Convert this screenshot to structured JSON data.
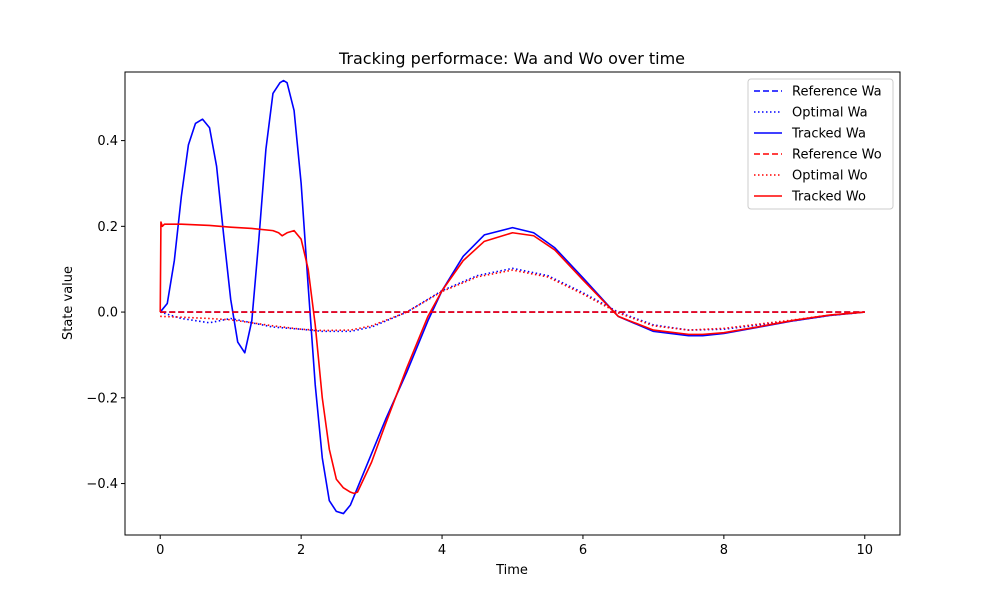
{
  "chart_data": {
    "type": "line",
    "title": "Tracking performace: Wa and Wo over time",
    "xlabel": "Time",
    "ylabel": "State value",
    "xlim": [
      -0.5,
      10.5
    ],
    "ylim": [
      -0.52,
      0.56
    ],
    "xticks": [
      0,
      2,
      4,
      6,
      8,
      10
    ],
    "xtick_labels": [
      "0",
      "2",
      "4",
      "6",
      "8",
      "10"
    ],
    "yticks": [
      -0.4,
      -0.2,
      0.0,
      0.2,
      0.4
    ],
    "ytick_labels": [
      "−0.4",
      "−0.2",
      "0.0",
      "0.2",
      "0.4"
    ],
    "grid": false,
    "legend_position": "top-right",
    "series": [
      {
        "name": "Reference Wa",
        "color": "#0000ff",
        "style": "dashed",
        "x": [
          0,
          10
        ],
        "y": [
          0,
          0
        ]
      },
      {
        "name": "Optimal Wa",
        "color": "#0000ff",
        "style": "dotted",
        "x": [
          0,
          0.3,
          0.7,
          1.0,
          1.3,
          1.6,
          2.0,
          2.3,
          2.7,
          3.0,
          3.5,
          4.0,
          4.5,
          5.0,
          5.5,
          6.0,
          6.5,
          7.0,
          7.5,
          8.0,
          8.5,
          9.0,
          9.5,
          10.0
        ],
        "y": [
          0,
          -0.015,
          -0.025,
          -0.015,
          -0.025,
          -0.035,
          -0.04,
          -0.045,
          -0.045,
          -0.035,
          0.0,
          0.05,
          0.085,
          0.102,
          0.085,
          0.045,
          0.0,
          -0.03,
          -0.042,
          -0.04,
          -0.03,
          -0.02,
          -0.008,
          0.0
        ]
      },
      {
        "name": "Tracked Wa",
        "color": "#0000ff",
        "style": "solid",
        "x": [
          0,
          0.1,
          0.2,
          0.3,
          0.4,
          0.5,
          0.6,
          0.7,
          0.8,
          0.9,
          1.0,
          1.1,
          1.2,
          1.3,
          1.4,
          1.5,
          1.6,
          1.7,
          1.75,
          1.8,
          1.9,
          2.0,
          2.1,
          2.2,
          2.3,
          2.4,
          2.5,
          2.6,
          2.7,
          2.8,
          3.0,
          3.2,
          3.5,
          3.8,
          4.0,
          4.3,
          4.6,
          5.0,
          5.3,
          5.6,
          6.0,
          6.5,
          7.0,
          7.5,
          7.7,
          8.0,
          8.5,
          9.0,
          9.5,
          10.0
        ],
        "y": [
          0,
          0.02,
          0.12,
          0.27,
          0.39,
          0.44,
          0.45,
          0.43,
          0.34,
          0.18,
          0.03,
          -0.07,
          -0.095,
          -0.02,
          0.17,
          0.38,
          0.51,
          0.535,
          0.54,
          0.535,
          0.47,
          0.3,
          0.06,
          -0.17,
          -0.34,
          -0.44,
          -0.465,
          -0.47,
          -0.45,
          -0.41,
          -0.33,
          -0.25,
          -0.14,
          -0.02,
          0.05,
          0.13,
          0.18,
          0.197,
          0.185,
          0.15,
          0.08,
          -0.01,
          -0.045,
          -0.055,
          -0.055,
          -0.05,
          -0.035,
          -0.02,
          -0.008,
          0.0
        ]
      },
      {
        "name": "Reference Wo",
        "color": "#ff0000",
        "style": "dashed",
        "x": [
          0,
          10
        ],
        "y": [
          0,
          0
        ]
      },
      {
        "name": "Optimal Wo",
        "color": "#ff0000",
        "style": "dotted",
        "x": [
          0,
          0.3,
          0.7,
          1.0,
          1.3,
          1.6,
          2.0,
          2.3,
          2.7,
          3.0,
          3.5,
          4.0,
          4.5,
          5.0,
          5.5,
          6.0,
          6.5,
          7.0,
          7.5,
          8.0,
          8.5,
          9.0,
          9.5,
          10.0
        ],
        "y": [
          -0.01,
          -0.012,
          -0.015,
          -0.018,
          -0.025,
          -0.032,
          -0.04,
          -0.043,
          -0.042,
          -0.032,
          0.0,
          0.048,
          0.082,
          0.098,
          0.082,
          0.042,
          -0.002,
          -0.032,
          -0.042,
          -0.038,
          -0.028,
          -0.018,
          -0.007,
          0.0
        ]
      },
      {
        "name": "Tracked Wo",
        "color": "#ff0000",
        "style": "solid",
        "x": [
          0,
          0.01,
          0.03,
          0.06,
          0.3,
          0.7,
          1.0,
          1.3,
          1.6,
          1.68,
          1.73,
          1.8,
          1.9,
          2.0,
          2.1,
          2.2,
          2.3,
          2.4,
          2.5,
          2.6,
          2.7,
          2.75,
          2.8,
          3.0,
          3.2,
          3.5,
          3.8,
          4.0,
          4.3,
          4.6,
          5.0,
          5.3,
          5.6,
          6.0,
          6.5,
          7.0,
          7.5,
          7.7,
          8.0,
          8.5,
          9.0,
          9.5,
          10.0
        ],
        "y": [
          0,
          0.21,
          0.2,
          0.205,
          0.205,
          0.202,
          0.198,
          0.195,
          0.19,
          0.185,
          0.178,
          0.185,
          0.19,
          0.17,
          0.1,
          -0.03,
          -0.2,
          -0.32,
          -0.39,
          -0.41,
          -0.42,
          -0.423,
          -0.42,
          -0.35,
          -0.26,
          -0.13,
          -0.01,
          0.05,
          0.12,
          0.165,
          0.185,
          0.178,
          0.145,
          0.075,
          -0.01,
          -0.042,
          -0.052,
          -0.052,
          -0.048,
          -0.034,
          -0.019,
          -0.007,
          0.0
        ]
      }
    ]
  }
}
